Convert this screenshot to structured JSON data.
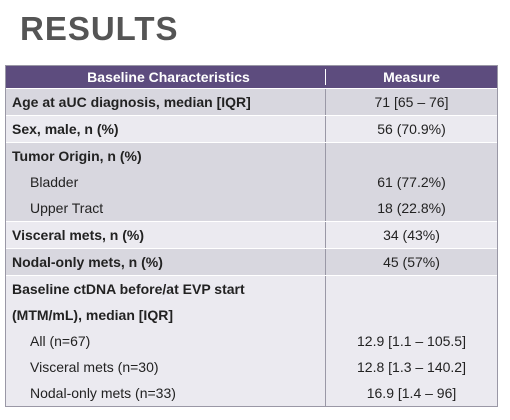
{
  "title": "RESULTS",
  "table": {
    "header": [
      "Baseline Characteristics",
      "Measure"
    ],
    "groups": [
      {
        "label": "Age at aUC diagnosis, median [IQR]",
        "value": "71 [65 – 76]"
      },
      {
        "label": "Sex, male, n (%)",
        "value": "56 (70.9%)"
      },
      {
        "label": "Tumor Origin, n (%)",
        "items": [
          {
            "label": "Bladder",
            "value": "61 (77.2%)"
          },
          {
            "label": "Upper Tract",
            "value": "18 (22.8%)"
          }
        ]
      },
      {
        "label": "Visceral mets, n (%)",
        "value": "34 (43%)"
      },
      {
        "label": "Nodal-only mets, n (%)",
        "value": "45 (57%)"
      },
      {
        "label_lines": [
          "Baseline ctDNA before/at EVP start",
          "(MTM/mL), median [IQR]"
        ],
        "items": [
          {
            "label": "All (n=67)",
            "value": "12.9 [1.1 – 105.5]"
          },
          {
            "label": "Visceral mets (n=30)",
            "value": "12.8 [1.3 – 140.2]"
          },
          {
            "label": "Nodal-only mets (n=33)",
            "value": "16.9 [1.4 – 96]"
          }
        ]
      }
    ]
  }
}
